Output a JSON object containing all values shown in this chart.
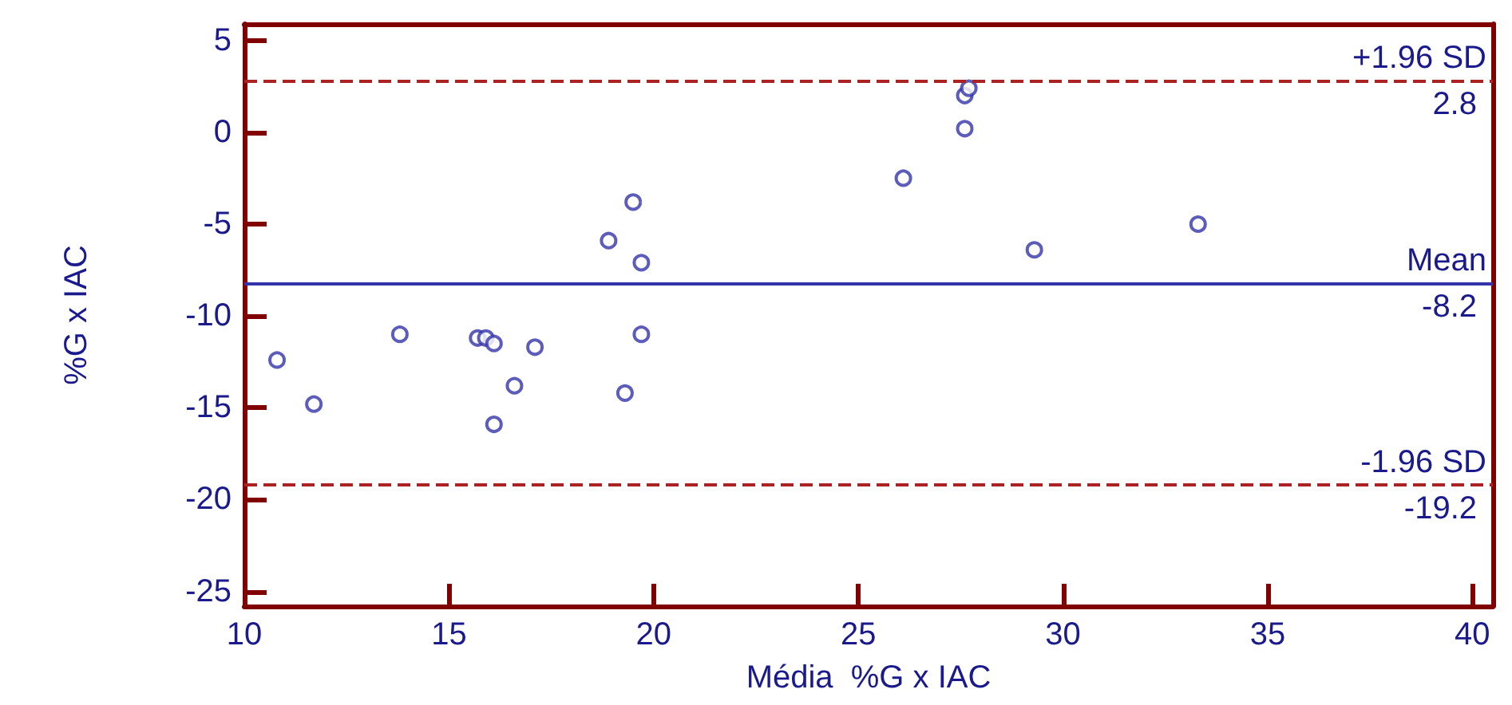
{
  "chart_data": {
    "type": "scatter",
    "xlabel": "Média  %G x IAC",
    "ylabel": "%G x IAC",
    "x": [
      10.8,
      11.7,
      13.8,
      15.7,
      15.9,
      16.1,
      16.1,
      16.6,
      17.1,
      18.9,
      19.3,
      19.5,
      19.7,
      19.7,
      26.1,
      27.6,
      27.7,
      27.6,
      29.3,
      33.3
    ],
    "series": [
      {
        "color": "#3333aa",
        "values": [
          -12.4,
          -14.8,
          -11.0,
          -11.2,
          -11.2,
          -11.5,
          -15.9,
          -13.8,
          -11.7,
          -5.9,
          -14.2,
          -3.8,
          -11.0,
          -7.1,
          -2.5,
          2.0,
          2.4,
          0.2,
          -6.4,
          -5.0
        ]
      }
    ],
    "marker": "circle",
    "grid": false,
    "xlim": [
      10,
      40.5
    ],
    "xticks": [
      10,
      15,
      20,
      25,
      30,
      35,
      40
    ],
    "ylim": [
      -25.8,
      5.9
    ],
    "yticks": [
      -25,
      -20,
      -15,
      -10,
      -5,
      0,
      5
    ],
    "annotations": [
      {
        "text": "2.8",
        "y": 2.8
      },
      {
        "text": "-8.2",
        "y": -8.2
      },
      {
        "text": "-19.2",
        "y": -19.2
      }
    ],
    "ref_lines": [
      {
        "axis": "y",
        "value": 2.8,
        "label": "+1.96 SD",
        "color": "#aa2222",
        "line_style": "dashed"
      },
      {
        "axis": "y",
        "value": -8.2,
        "label": "Mean",
        "color": "#3333aa",
        "line_style": "solid"
      },
      {
        "axis": "y",
        "value": -19.2,
        "label": "-1.96 SD",
        "color": "#aa2222",
        "line_style": "dashed"
      }
    ]
  }
}
